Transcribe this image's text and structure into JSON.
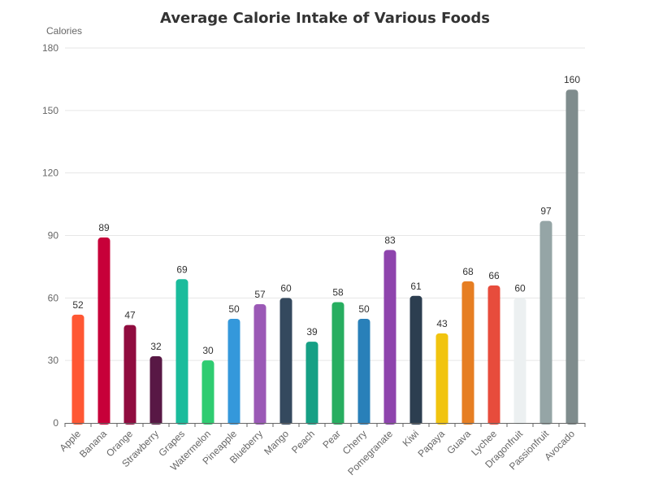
{
  "chart_data": {
    "type": "bar",
    "title": "Average Calorie Intake of Various Foods",
    "ylabel": "Calories",
    "xlabel": "",
    "ylim": [
      0,
      180
    ],
    "yticks": [
      0,
      30,
      60,
      90,
      120,
      150,
      180
    ],
    "grid": true,
    "categories": [
      "Apple",
      "Banana",
      "Orange",
      "Strawberry",
      "Grapes",
      "Watermelon",
      "Pineapple",
      "Blueberry",
      "Mango",
      "Peach",
      "Pear",
      "Cherry",
      "Pomegranate",
      "Kiwi",
      "Papaya",
      "Guava",
      "Lychee",
      "Dragonfruit",
      "Passionfruit",
      "Avocado"
    ],
    "values": [
      52,
      89,
      47,
      32,
      69,
      30,
      50,
      57,
      60,
      39,
      58,
      50,
      83,
      61,
      43,
      68,
      66,
      60,
      97,
      160
    ],
    "colors": [
      "#ff5733",
      "#c70039",
      "#900c3f",
      "#581845",
      "#1abc9c",
      "#2ecc71",
      "#3498db",
      "#9b59b6",
      "#34495e",
      "#16a085",
      "#27ae60",
      "#2980b9",
      "#8e44ad",
      "#2c3e50",
      "#f1c40f",
      "#e67e22",
      "#e74c3c",
      "#ecf0f1",
      "#95a5a6",
      "#7f8c8d"
    ]
  }
}
